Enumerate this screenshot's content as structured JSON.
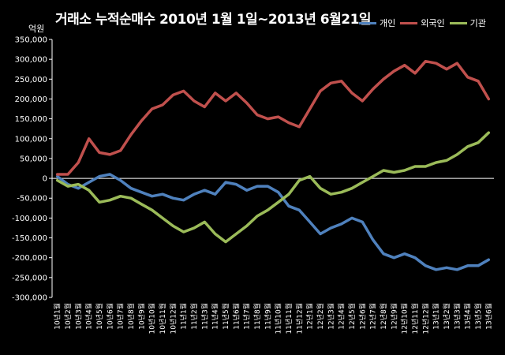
{
  "chart_data": {
    "type": "line",
    "title": "거래소 누적순매수 2010년 1월 1일~2013년 6월21일",
    "ylabel": "억원",
    "ylim": [
      -300000,
      350000
    ],
    "yticks": [
      350000,
      300000,
      250000,
      200000,
      150000,
      100000,
      50000,
      0,
      -50000,
      -100000,
      -150000,
      -200000,
      -250000,
      -300000
    ],
    "ytick_labels": [
      "350,000",
      "300,000",
      "250,000",
      "200,000",
      "150,000",
      "100,000",
      "50,000",
      "0",
      "-50,000",
      "-100,000",
      "-150,000",
      "-200,000",
      "-250,000",
      "-300,000"
    ],
    "legend_position": "top-right",
    "grid": false,
    "categories": [
      "10년1월",
      "10년2월",
      "10년3월",
      "10년4월",
      "10년5월",
      "10년6월",
      "10년7월",
      "10년8월",
      "10년9월",
      "10년10월",
      "10년11월",
      "10년12월",
      "11년1월",
      "11년2월",
      "11년3월",
      "11년4월",
      "11년5월",
      "11년6월",
      "11년7월",
      "11년8월",
      "11년9월",
      "11년10월",
      "11년11월",
      "11년12월",
      "12년1월",
      "12년2월",
      "12년3월",
      "12년4월",
      "12년5월",
      "12년6월",
      "12년7월",
      "12년8월",
      "12년9월",
      "12년10월",
      "12년11월",
      "12년12월",
      "13년1월",
      "13년2월",
      "13년3월",
      "13년4월",
      "13년5월",
      "13년6월"
    ],
    "series": [
      {
        "name": "개인",
        "color": "#4f81bd",
        "values": [
          5000,
          -15000,
          -25000,
          -10000,
          5000,
          10000,
          -5000,
          -25000,
          -35000,
          -45000,
          -40000,
          -50000,
          -55000,
          -40000,
          -30000,
          -40000,
          -10000,
          -15000,
          -30000,
          -20000,
          -20000,
          -35000,
          -70000,
          -80000,
          -110000,
          -140000,
          -125000,
          -115000,
          -100000,
          -110000,
          -155000,
          -190000,
          -200000,
          -190000,
          -200000,
          -220000,
          -230000,
          -225000,
          -230000,
          -220000,
          -220000,
          -205000
        ]
      },
      {
        "name": "외국인",
        "color": "#c0504d",
        "values": [
          10000,
          10000,
          40000,
          100000,
          65000,
          60000,
          70000,
          110000,
          145000,
          175000,
          185000,
          210000,
          220000,
          195000,
          180000,
          215000,
          195000,
          215000,
          190000,
          160000,
          150000,
          155000,
          140000,
          130000,
          175000,
          220000,
          240000,
          245000,
          215000,
          195000,
          225000,
          250000,
          270000,
          285000,
          265000,
          295000,
          290000,
          275000,
          290000,
          255000,
          245000,
          200000
        ]
      },
      {
        "name": "기관",
        "color": "#9bbb59",
        "values": [
          -5000,
          -20000,
          -15000,
          -30000,
          -60000,
          -55000,
          -45000,
          -50000,
          -65000,
          -80000,
          -100000,
          -120000,
          -135000,
          -125000,
          -110000,
          -140000,
          -160000,
          -140000,
          -120000,
          -95000,
          -80000,
          -60000,
          -40000,
          -5000,
          5000,
          -25000,
          -40000,
          -35000,
          -25000,
          -10000,
          5000,
          20000,
          15000,
          20000,
          30000,
          30000,
          40000,
          45000,
          60000,
          80000,
          90000,
          115000
        ]
      }
    ]
  }
}
